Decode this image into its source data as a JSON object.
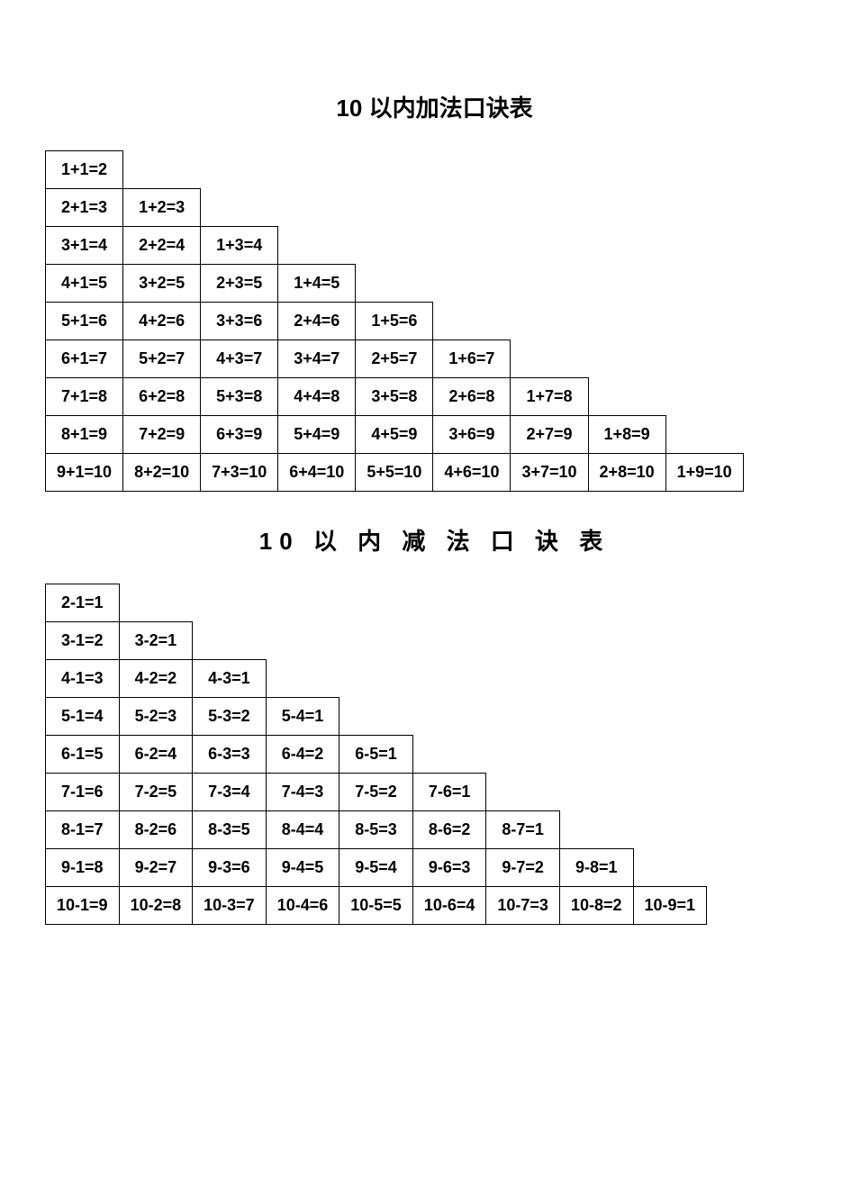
{
  "titles": {
    "addition": "10 以内加法口诀表",
    "subtraction": "10 以 内 减 法 口 诀 表"
  },
  "style": {
    "title_fontsize": 26,
    "title_fontweight": "bold",
    "cell_fontsize": 18,
    "cell_fontweight": "bold",
    "border_color": "#000000",
    "background_color": "#ffffff",
    "text_color": "#000000"
  },
  "addition_table": {
    "type": "table",
    "columns": 9,
    "rows": [
      [
        "1+1=2"
      ],
      [
        "2+1=3",
        "1+2=3"
      ],
      [
        "3+1=4",
        "2+2=4",
        "1+3=4"
      ],
      [
        "4+1=5",
        "3+2=5",
        "2+3=5",
        "1+4=5"
      ],
      [
        "5+1=6",
        "4+2=6",
        "3+3=6",
        "2+4=6",
        "1+5=6"
      ],
      [
        "6+1=7",
        "5+2=7",
        "4+3=7",
        "3+4=7",
        "2+5=7",
        "1+6=7"
      ],
      [
        "7+1=8",
        "6+2=8",
        "5+3=8",
        "4+4=8",
        "3+5=8",
        "2+6=8",
        "1+7=8"
      ],
      [
        "8+1=9",
        "7+2=9",
        "6+3=9",
        "5+4=9",
        "4+5=9",
        "3+6=9",
        "2+7=9",
        "1+8=9"
      ],
      [
        "9+1=10",
        "8+2=10",
        "7+3=10",
        "6+4=10",
        "5+5=10",
        "4+6=10",
        "3+7=10",
        "2+8=10",
        "1+9=10"
      ]
    ]
  },
  "subtraction_table": {
    "type": "table",
    "columns": 9,
    "rows": [
      [
        "2-1=1"
      ],
      [
        "3-1=2",
        "3-2=1"
      ],
      [
        "4-1=3",
        "4-2=2",
        "4-3=1"
      ],
      [
        "5-1=4",
        "5-2=3",
        "5-3=2",
        "5-4=1"
      ],
      [
        "6-1=5",
        "6-2=4",
        "6-3=3",
        "6-4=2",
        "6-5=1"
      ],
      [
        "7-1=6",
        "7-2=5",
        "7-3=4",
        "7-4=3",
        "7-5=2",
        "7-6=1"
      ],
      [
        "8-1=7",
        "8-2=6",
        "8-3=5",
        "8-4=4",
        "8-5=3",
        "8-6=2",
        "8-7=1"
      ],
      [
        "9-1=8",
        "9-2=7",
        "9-3=6",
        "9-4=5",
        "9-5=4",
        "9-6=3",
        "9-7=2",
        "9-8=1"
      ],
      [
        "10-1=9",
        "10-2=8",
        "10-3=7",
        "10-4=6",
        "10-5=5",
        "10-6=4",
        "10-7=3",
        "10-8=2",
        "10-9=1"
      ]
    ]
  }
}
